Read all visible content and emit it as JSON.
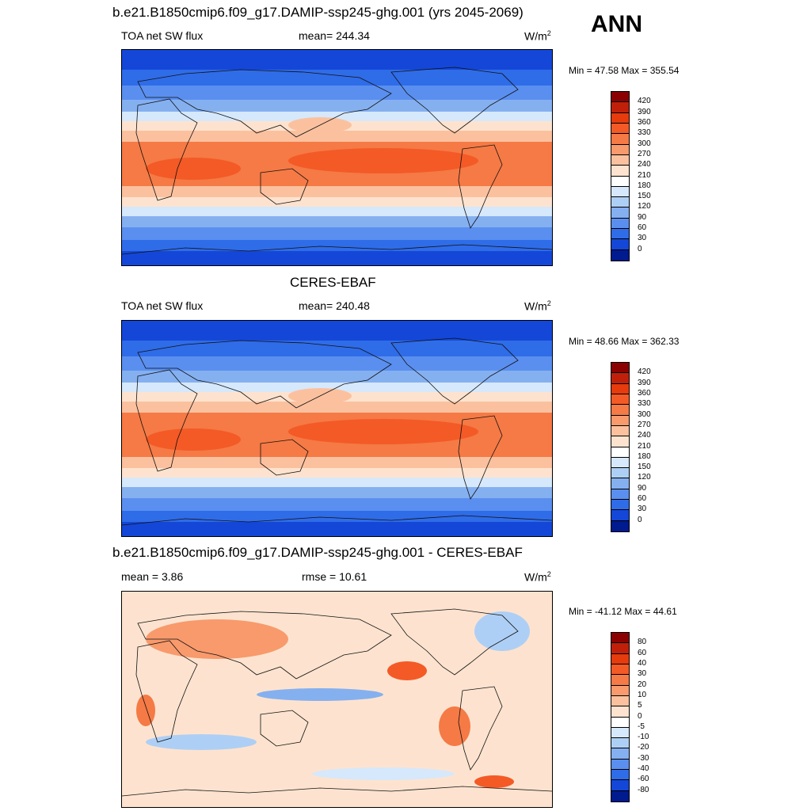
{
  "header": {
    "season": "ANN"
  },
  "panels": [
    {
      "title": "b.e21.B1850cmip6.f09_g17.DAMIP-ssp245-ghg.001 (yrs 2045-2069)",
      "left_label": "TOA net SW flux",
      "center_label": "mean= 244.34",
      "units": "W/m",
      "units_sup": "2",
      "minmax": "Min =  47.58 Max = 355.54",
      "kind": "abs"
    },
    {
      "title": "CERES-EBAF",
      "left_label": "TOA net SW flux",
      "center_label": "mean= 240.48",
      "units": "W/m",
      "units_sup": "2",
      "minmax": "Min =  48.66 Max = 362.33",
      "kind": "abs"
    },
    {
      "title": "b.e21.B1850cmip6.f09_g17.DAMIP-ssp245-ghg.001 - CERES-EBAF",
      "left_label": "mean =   3.86",
      "center_label": "rmse =  10.61",
      "units": "W/m",
      "units_sup": "2",
      "minmax": "Min = -41.12 Max =  44.61",
      "kind": "diff"
    }
  ],
  "colorbars": {
    "abs": {
      "levels": [
        "420",
        "390",
        "360",
        "330",
        "300",
        "270",
        "240",
        "210",
        "180",
        "150",
        "120",
        "90",
        "60",
        "30",
        "0"
      ],
      "colors": [
        "#8b0000",
        "#c0200a",
        "#e63b0c",
        "#f45a26",
        "#f57a45",
        "#f89a6c",
        "#fbc19f",
        "#fde3cf",
        "#ffffff",
        "#d6e8fb",
        "#aecff5",
        "#85b0f0",
        "#5a8ff0",
        "#2f6ce8",
        "#1447d8",
        "#001a8f"
      ]
    },
    "diff": {
      "levels": [
        "80",
        "60",
        "40",
        "30",
        "20",
        "10",
        "5",
        "0",
        "-5",
        "-10",
        "-20",
        "-30",
        "-40",
        "-60",
        "-80"
      ],
      "colors": [
        "#8b0000",
        "#c0200a",
        "#e63b0c",
        "#f45a26",
        "#f57a45",
        "#f89a6c",
        "#fbc19f",
        "#fde3cf",
        "#ffffff",
        "#d6e8fb",
        "#aecff5",
        "#85b0f0",
        "#5a8ff0",
        "#2f6ce8",
        "#1447d8",
        "#001a8f"
      ]
    }
  }
}
